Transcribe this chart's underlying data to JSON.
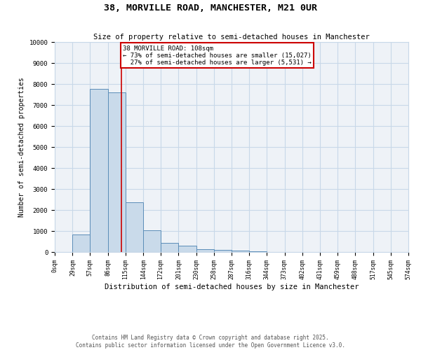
{
  "title": "38, MORVILLE ROAD, MANCHESTER, M21 0UR",
  "subtitle": "Size of property relative to semi-detached houses in Manchester",
  "xlabel": "Distribution of semi-detached houses by size in Manchester",
  "ylabel": "Number of semi-detached properties",
  "bar_edges": [
    0,
    29,
    57,
    86,
    115,
    144,
    172,
    201,
    230,
    258,
    287,
    316,
    344,
    373,
    402,
    431,
    459,
    488,
    517,
    545,
    574
  ],
  "bar_heights": [
    0,
    820,
    7750,
    7600,
    2380,
    1050,
    450,
    290,
    130,
    110,
    75,
    30,
    15,
    10,
    5,
    3,
    2,
    1,
    1,
    0
  ],
  "property_size": 108,
  "pct_smaller": 73,
  "pct_larger": 27,
  "n_smaller": 15027,
  "n_larger": 5531,
  "bar_color": "#c9daea",
  "bar_edge_color": "#5b8db8",
  "vline_color": "#cc0000",
  "annotation_box_color": "#cc0000",
  "grid_color": "#c8d8e8",
  "background_color": "#eef2f7",
  "footer_text": "Contains HM Land Registry data © Crown copyright and database right 2025.\nContains public sector information licensed under the Open Government Licence v3.0.",
  "tick_labels": [
    "0sqm",
    "29sqm",
    "57sqm",
    "86sqm",
    "115sqm",
    "144sqm",
    "172sqm",
    "201sqm",
    "230sqm",
    "258sqm",
    "287sqm",
    "316sqm",
    "344sqm",
    "373sqm",
    "402sqm",
    "431sqm",
    "459sqm",
    "488sqm",
    "517sqm",
    "545sqm",
    "574sqm"
  ],
  "ylim": [
    0,
    10000
  ],
  "yticks": [
    0,
    1000,
    2000,
    3000,
    4000,
    5000,
    6000,
    7000,
    8000,
    9000,
    10000
  ]
}
